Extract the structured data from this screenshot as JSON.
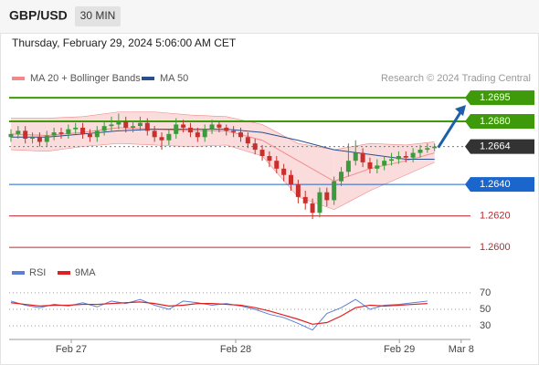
{
  "header": {
    "symbol": "GBP/USD",
    "interval": "30 MIN",
    "timestamp": "Thursday, February 29, 2024 5:06:00 AM CET"
  },
  "chart_data": [
    {
      "type": "candlestick",
      "source": "Research © 2024 Trading Central",
      "xlim": [
        -0.25,
        64
      ],
      "ylim": [
        1.2592,
        1.2702
      ],
      "up_color": "#3b9a3b",
      "down_color": "#c9302c",
      "candles": [
        [
          1.267,
          1.2675,
          1.2667,
          1.2672
        ],
        [
          1.2672,
          1.2677,
          1.2669,
          1.2674
        ],
        [
          1.2674,
          1.2677,
          1.2666,
          1.2669
        ],
        [
          1.2669,
          1.2673,
          1.2666,
          1.267
        ],
        [
          1.267,
          1.2673,
          1.2664,
          1.2667
        ],
        [
          1.2667,
          1.2674,
          1.2664,
          1.2671
        ],
        [
          1.2671,
          1.2676,
          1.2668,
          1.2673
        ],
        [
          1.2673,
          1.2676,
          1.2669,
          1.2672
        ],
        [
          1.2672,
          1.2678,
          1.2669,
          1.2675
        ],
        [
          1.2675,
          1.2679,
          1.2672,
          1.2676
        ],
        [
          1.2676,
          1.2679,
          1.2669,
          1.2672
        ],
        [
          1.2672,
          1.2675,
          1.2667,
          1.267
        ],
        [
          1.267,
          1.2677,
          1.2667,
          1.2674
        ],
        [
          1.2674,
          1.268,
          1.2671,
          1.2677
        ],
        [
          1.2677,
          1.2683,
          1.2674,
          1.2678
        ],
        [
          1.2678,
          1.2685,
          1.2675,
          1.268
        ],
        [
          1.268,
          1.2683,
          1.2673,
          1.2676
        ],
        [
          1.2676,
          1.268,
          1.2673,
          1.2677
        ],
        [
          1.2677,
          1.2683,
          1.2674,
          1.2679
        ],
        [
          1.2679,
          1.2682,
          1.2671,
          1.2674
        ],
        [
          1.2674,
          1.2677,
          1.2667,
          1.267
        ],
        [
          1.267,
          1.2673,
          1.2662,
          1.2668
        ],
        [
          1.2668,
          1.2675,
          1.2665,
          1.2672
        ],
        [
          1.2672,
          1.2682,
          1.2669,
          1.2678
        ],
        [
          1.2678,
          1.2681,
          1.2673,
          1.2676
        ],
        [
          1.2676,
          1.2679,
          1.267,
          1.2673
        ],
        [
          1.2673,
          1.2676,
          1.2667,
          1.267
        ],
        [
          1.267,
          1.2678,
          1.2667,
          1.2675
        ],
        [
          1.2675,
          1.2681,
          1.2672,
          1.2678
        ],
        [
          1.2678,
          1.268,
          1.2673,
          1.2676
        ],
        [
          1.2676,
          1.2678,
          1.2671,
          1.2674
        ],
        [
          1.2674,
          1.2677,
          1.267,
          1.2673
        ],
        [
          1.2673,
          1.2676,
          1.2667,
          1.267
        ],
        [
          1.267,
          1.2673,
          1.2663,
          1.2666
        ],
        [
          1.2666,
          1.2669,
          1.2659,
          1.2662
        ],
        [
          1.2662,
          1.2665,
          1.2655,
          1.2658
        ],
        [
          1.2658,
          1.2661,
          1.2651,
          1.2655
        ],
        [
          1.2655,
          1.2658,
          1.2647,
          1.265
        ],
        [
          1.265,
          1.2653,
          1.2642,
          1.2646
        ],
        [
          1.2646,
          1.2649,
          1.2636,
          1.264
        ],
        [
          1.264,
          1.2643,
          1.2628,
          1.2632
        ],
        [
          1.2632,
          1.2636,
          1.2624,
          1.2628
        ],
        [
          1.2628,
          1.2631,
          1.2618,
          1.2622
        ],
        [
          1.2622,
          1.2638,
          1.2619,
          1.2635
        ],
        [
          1.2635,
          1.2638,
          1.2626,
          1.263
        ],
        [
          1.263,
          1.2645,
          1.2627,
          1.2642
        ],
        [
          1.2642,
          1.2651,
          1.2639,
          1.2648
        ],
        [
          1.2648,
          1.2666,
          1.2645,
          1.2655
        ],
        [
          1.2655,
          1.2668,
          1.2652,
          1.266
        ],
        [
          1.266,
          1.2663,
          1.2651,
          1.2654
        ],
        [
          1.2654,
          1.2657,
          1.2647,
          1.265
        ],
        [
          1.265,
          1.2656,
          1.2647,
          1.2652
        ],
        [
          1.2652,
          1.2658,
          1.2649,
          1.2655
        ],
        [
          1.2655,
          1.266,
          1.2652,
          1.2656
        ],
        [
          1.2656,
          1.2661,
          1.2653,
          1.2658
        ],
        [
          1.2658,
          1.2661,
          1.2654,
          1.2657
        ],
        [
          1.2657,
          1.2663,
          1.2654,
          1.266
        ],
        [
          1.266,
          1.2665,
          1.2657,
          1.2662
        ],
        [
          1.2662,
          1.2666,
          1.266,
          1.2663
        ],
        [
          1.2663,
          1.2666,
          1.2661,
          1.2664
        ]
      ],
      "bands": {
        "name": "MA 20 + Bollinger Bands",
        "color": "#f08a8a",
        "fill": "#fbdcdc",
        "x": [
          0,
          5,
          10,
          15,
          20,
          25,
          30,
          35,
          40,
          45,
          50,
          55,
          59
        ],
        "upper": [
          1.2682,
          1.2682,
          1.2683,
          1.2686,
          1.2686,
          1.2684,
          1.2683,
          1.2678,
          1.2666,
          1.2662,
          1.2666,
          1.2665,
          1.2667
        ],
        "middle": [
          1.2672,
          1.2671,
          1.2673,
          1.2676,
          1.2675,
          1.2674,
          1.2674,
          1.2668,
          1.2655,
          1.2642,
          1.265,
          1.2655,
          1.266
        ],
        "lower": [
          1.2662,
          1.2661,
          1.2664,
          1.2666,
          1.2665,
          1.2664,
          1.2665,
          1.2658,
          1.2632,
          1.2624,
          1.2636,
          1.2646,
          1.2654
        ]
      },
      "ma50": {
        "name": "MA 50",
        "color": "#2a4f8f",
        "x": [
          0,
          5,
          10,
          15,
          20,
          25,
          30,
          35,
          40,
          45,
          50,
          55,
          59
        ],
        "values": [
          1.267,
          1.267,
          1.2672,
          1.2674,
          1.2675,
          1.2675,
          1.2675,
          1.2673,
          1.2668,
          1.2662,
          1.2659,
          1.2656,
          1.2656
        ]
      },
      "levels": [
        {
          "value": 1.2695,
          "label": "1.2695",
          "color": "#3f9a0b",
          "badge": true,
          "dotted": false
        },
        {
          "value": 1.268,
          "label": "1.2680",
          "color": "#3f9a0b",
          "badge": true,
          "dotted": false
        },
        {
          "value": 1.2664,
          "label": "1.2664",
          "color": "#333333",
          "badge": true,
          "dotted": true
        },
        {
          "value": 1.264,
          "label": "1.2640",
          "color": "#1a66cc",
          "badge": true,
          "dotted": false
        },
        {
          "value": 1.262,
          "label": "1.2620",
          "color": "#c0272d",
          "badge": false,
          "dotted": false
        },
        {
          "value": 1.26,
          "label": "1.2600",
          "color": "#c0272d",
          "badge": false,
          "dotted": false
        }
      ]
    },
    {
      "type": "line",
      "xlim": [
        -0.25,
        64
      ],
      "ylim": [
        18,
        82
      ],
      "yticks": [
        30,
        50,
        70
      ],
      "grid": true,
      "xticks": [
        {
          "value": 8.4,
          "label": "Feb 27"
        },
        {
          "value": 31.3,
          "label": "Feb 28"
        },
        {
          "value": 54.1,
          "label": "Feb 29"
        },
        {
          "value": 62.7,
          "label": "Mar 8"
        }
      ],
      "x": [
        0,
        2,
        4,
        6,
        8,
        10,
        12,
        14,
        16,
        18,
        20,
        22,
        24,
        26,
        28,
        30,
        32,
        34,
        36,
        38,
        40,
        42,
        44,
        46,
        48,
        50,
        52,
        54,
        56,
        58
      ],
      "series": [
        {
          "name": "RSI",
          "color": "#5b7fd6",
          "values": [
            60,
            55,
            52,
            56,
            54,
            58,
            53,
            60,
            57,
            62,
            55,
            50,
            60,
            58,
            55,
            57,
            54,
            50,
            44,
            40,
            33,
            25,
            45,
            52,
            62,
            50,
            55,
            56,
            58,
            60
          ]
        },
        {
          "name": "9MA",
          "color": "#e02020",
          "values": [
            58,
            56,
            54,
            55,
            55,
            56,
            56,
            57,
            58,
            59,
            57,
            54,
            55,
            57,
            57,
            56,
            55,
            52,
            48,
            43,
            38,
            32,
            34,
            42,
            52,
            55,
            54,
            55,
            56,
            57
          ]
        }
      ]
    }
  ]
}
